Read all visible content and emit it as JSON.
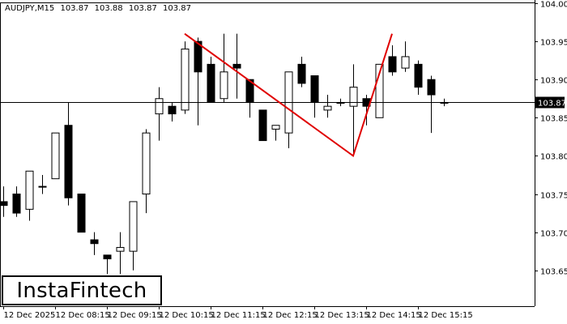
{
  "symbol": "AUDJPY,M15",
  "ohlc": [
    "103.87",
    "103.88",
    "103.87",
    "103.87"
  ],
  "logo_text": "InstaFintech",
  "colors": {
    "pattern_line": "#e00000",
    "bull_body": "#ffffff",
    "bear_body": "#000000",
    "axis": "#000000"
  },
  "chart_data": {
    "type": "candlestick",
    "title": "AUDJPY,M15",
    "ylim": [
      103.603,
      104.0
    ],
    "y_ticks": [
      "104.00",
      "103.95",
      "103.90",
      "103.85",
      "103.80",
      "103.75",
      "103.70",
      "103.65"
    ],
    "x_labels": [
      "12 Dec 2025",
      "12 Dec 08:15",
      "12 Dec 09:15",
      "12 Dec 10:15",
      "12 Dec 11:15",
      "12 Dec 12:15",
      "12 Dec 13:15",
      "12 Dec 14:15",
      "12 Dec 15:15"
    ],
    "current_price": "103.87",
    "candles": [
      {
        "o": 103.74,
        "h": 103.76,
        "l": 103.72,
        "c": 103.735
      },
      {
        "o": 103.75,
        "h": 103.76,
        "l": 103.72,
        "c": 103.725
      },
      {
        "o": 103.73,
        "h": 103.78,
        "l": 103.715,
        "c": 103.78
      },
      {
        "o": 103.76,
        "h": 103.775,
        "l": 103.75,
        "c": 103.76
      },
      {
        "o": 103.77,
        "h": 103.83,
        "l": 103.77,
        "c": 103.83
      },
      {
        "o": 103.84,
        "h": 103.87,
        "l": 103.735,
        "c": 103.745
      },
      {
        "o": 103.75,
        "h": 103.75,
        "l": 103.7,
        "c": 103.7
      },
      {
        "o": 103.69,
        "h": 103.7,
        "l": 103.67,
        "c": 103.685
      },
      {
        "o": 103.67,
        "h": 103.67,
        "l": 103.645,
        "c": 103.665
      },
      {
        "o": 103.675,
        "h": 103.7,
        "l": 103.645,
        "c": 103.68
      },
      {
        "o": 103.675,
        "h": 103.74,
        "l": 103.65,
        "c": 103.74
      },
      {
        "o": 103.75,
        "h": 103.835,
        "l": 103.725,
        "c": 103.83
      },
      {
        "o": 103.855,
        "h": 103.89,
        "l": 103.82,
        "c": 103.875
      },
      {
        "o": 103.865,
        "h": 103.87,
        "l": 103.845,
        "c": 103.855
      },
      {
        "o": 103.86,
        "h": 103.95,
        "l": 103.855,
        "c": 103.94
      },
      {
        "o": 103.95,
        "h": 103.955,
        "l": 103.84,
        "c": 103.91
      },
      {
        "o": 103.92,
        "h": 103.93,
        "l": 103.87,
        "c": 103.87
      },
      {
        "o": 103.875,
        "h": 103.96,
        "l": 103.87,
        "c": 103.91
      },
      {
        "o": 103.92,
        "h": 103.96,
        "l": 103.875,
        "c": 103.915
      },
      {
        "o": 103.9,
        "h": 103.9,
        "l": 103.85,
        "c": 103.87
      },
      {
        "o": 103.86,
        "h": 103.86,
        "l": 103.82,
        "c": 103.82
      },
      {
        "o": 103.835,
        "h": 103.84,
        "l": 103.82,
        "c": 103.84
      },
      {
        "o": 103.83,
        "h": 103.91,
        "l": 103.81,
        "c": 103.91
      },
      {
        "o": 103.92,
        "h": 103.93,
        "l": 103.89,
        "c": 103.895
      },
      {
        "o": 103.905,
        "h": 103.905,
        "l": 103.85,
        "c": 103.87
      },
      {
        "o": 103.86,
        "h": 103.88,
        "l": 103.85,
        "c": 103.865
      },
      {
        "o": 103.87,
        "h": 103.875,
        "l": 103.865,
        "c": 103.87
      },
      {
        "o": 103.865,
        "h": 103.92,
        "l": 103.8,
        "c": 103.89
      },
      {
        "o": 103.875,
        "h": 103.88,
        "l": 103.84,
        "c": 103.865
      },
      {
        "o": 103.85,
        "h": 103.92,
        "l": 103.85,
        "c": 103.92
      },
      {
        "o": 103.93,
        "h": 103.945,
        "l": 103.905,
        "c": 103.91
      },
      {
        "o": 103.915,
        "h": 103.95,
        "l": 103.91,
        "c": 103.93
      },
      {
        "o": 103.92,
        "h": 103.925,
        "l": 103.88,
        "c": 103.89
      },
      {
        "o": 103.9,
        "h": 103.905,
        "l": 103.83,
        "c": 103.88
      },
      {
        "o": 103.87,
        "h": 103.875,
        "l": 103.865,
        "c": 103.87
      }
    ],
    "pattern_line": [
      {
        "i": 14,
        "y": 103.96
      },
      {
        "i": 27,
        "y": 103.8
      },
      {
        "i": 30,
        "y": 103.96
      }
    ]
  }
}
